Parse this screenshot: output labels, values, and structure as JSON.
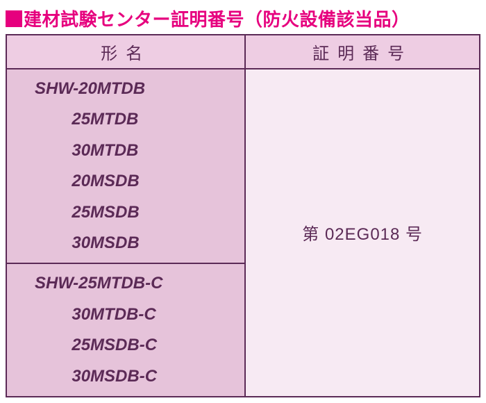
{
  "title": {
    "marker_color": "#e6007e",
    "text": "建材試験センター証明番号（防火設備該当品）",
    "text_color": "#e6007e"
  },
  "table": {
    "border_color": "#5b2a56",
    "header_bg": "#eecde3",
    "body_bg_models": "#e6c3da",
    "body_bg_cert": "#f7eaf3",
    "text_color": "#5b2a56",
    "columns": [
      "形名",
      "証明番号"
    ],
    "model_groups": [
      "SHW-20MTDB\n        25MTDB\n        30MTDB\n        20MSDB\n        25MSDB\n        30MSDB",
      "SHW-25MTDB-C\n        30MTDB-C\n        25MSDB-C\n        30MSDB-C"
    ],
    "cert_number": "第 02EG018 号"
  }
}
